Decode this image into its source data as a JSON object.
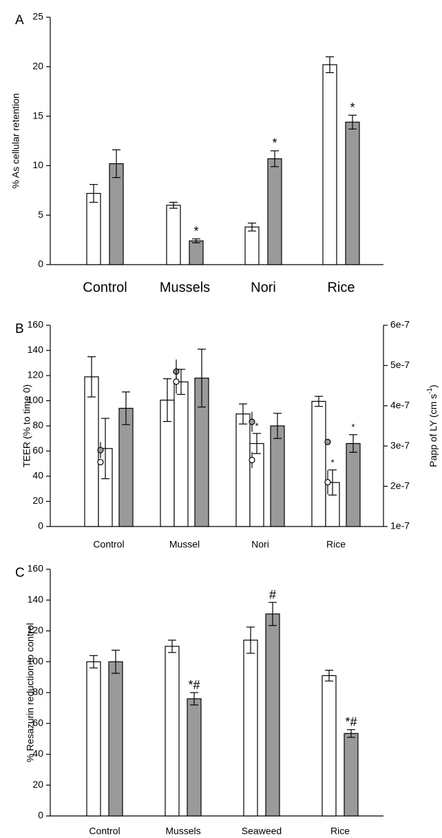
{
  "chart_data": [
    {
      "type": "bar",
      "panel_label": "A",
      "ylabel": "% As cellular retention",
      "ylim": [
        0,
        25
      ],
      "yticks": [
        "0",
        "5",
        "10",
        "15",
        "20",
        "25"
      ],
      "categories": [
        "Control",
        "Mussels",
        "Nori",
        "Rice"
      ],
      "series": [
        {
          "style": "white",
          "values": [
            7.2,
            6.0,
            3.8,
            20.2
          ],
          "errors": [
            0.9,
            0.3,
            0.4,
            0.8
          ]
        },
        {
          "style": "grey",
          "values": [
            10.2,
            2.4,
            10.7,
            14.4
          ],
          "errors": [
            1.4,
            0.2,
            0.8,
            0.7
          ]
        }
      ],
      "annotations": [
        {
          "category": "Mussels",
          "series": 1,
          "text": "*"
        },
        {
          "category": "Nori",
          "series": 1,
          "text": "*"
        },
        {
          "category": "Rice",
          "series": 1,
          "text": "*"
        }
      ],
      "grid": false
    },
    {
      "type": "bar",
      "panel_label": "B",
      "ylabel": "TEER (% to time 0)",
      "ylim": [
        0,
        160
      ],
      "yticks": [
        "0",
        "20",
        "40",
        "60",
        "80",
        "100",
        "120",
        "140",
        "160"
      ],
      "y2label_main": "Papp of LY (cm s",
      "y2label_sup": "-1",
      "y2label_end": ")",
      "y2lim": [
        1e-07,
        6e-07
      ],
      "y2ticks": [
        "1e-7",
        "2e-7",
        "3e-7",
        "4e-7",
        "5e-7",
        "6e-7"
      ],
      "categories": [
        "Control",
        "Mussel",
        "Nori",
        "Rice"
      ],
      "series": [
        {
          "style": "white",
          "values": [
            119,
            100.5,
            89.5,
            99.5
          ],
          "errors": [
            16,
            17,
            8,
            4
          ]
        },
        {
          "style": "white",
          "values": [
            62,
            115,
            66,
            35
          ],
          "errors": [
            24,
            10,
            8,
            10
          ]
        },
        {
          "style": "grey",
          "values": [
            94,
            118,
            80,
            66
          ],
          "errors": [
            13,
            23,
            10,
            7
          ]
        }
      ],
      "points": [
        {
          "category": "Control",
          "papp": 2.9e-07,
          "papp_error": 2e-08,
          "fill": "grey"
        },
        {
          "category": "Control",
          "papp": 2.6e-07,
          "papp_error": 5e-09,
          "fill": "white"
        },
        {
          "category": "Mussel",
          "papp": 4.85e-07,
          "papp_error": 3e-08,
          "fill": "grey"
        },
        {
          "category": "Mussel",
          "papp": 4.6e-07,
          "papp_error": 3e-08,
          "fill": "white"
        },
        {
          "category": "Nori",
          "papp": 3.6e-07,
          "papp_error": 2.5e-08,
          "fill": "grey"
        },
        {
          "category": "Nori",
          "papp": 2.65e-07,
          "papp_error": 2e-08,
          "fill": "white"
        },
        {
          "category": "Rice",
          "papp": 3.1e-07,
          "papp_error": 5e-09,
          "fill": "grey"
        },
        {
          "category": "Rice",
          "papp": 2.1e-07,
          "papp_error": 3e-08,
          "fill": "white"
        }
      ],
      "annotations": [
        {
          "category": "Nori",
          "series": 1,
          "text": "*"
        },
        {
          "category": "Rice",
          "series": 1,
          "text": "*"
        },
        {
          "category": "Rice",
          "series": 2,
          "text": "*"
        }
      ],
      "grid": false
    },
    {
      "type": "bar",
      "panel_label": "C",
      "ylabel": "% Resazurin reduction to control",
      "ylim": [
        0,
        160
      ],
      "yticks": [
        "0",
        "20",
        "40",
        "60",
        "80",
        "100",
        "120",
        "140",
        "160"
      ],
      "categories": [
        "Control",
        "Mussels",
        "Seaweed",
        "Rice"
      ],
      "series": [
        {
          "style": "white",
          "values": [
            100,
            110,
            114,
            91
          ],
          "errors": [
            4,
            4,
            8.5,
            3.5
          ]
        },
        {
          "style": "grey",
          "values": [
            100,
            76,
            131,
            53.5
          ],
          "errors": [
            7.5,
            4,
            7.5,
            2.5
          ]
        }
      ],
      "annotations": [
        {
          "category": "Mussels",
          "series": 1,
          "text": "*#"
        },
        {
          "category": "Seaweed",
          "series": 1,
          "text": "#"
        },
        {
          "category": "Rice",
          "series": 1,
          "text": "*#"
        }
      ],
      "grid": false
    }
  ]
}
